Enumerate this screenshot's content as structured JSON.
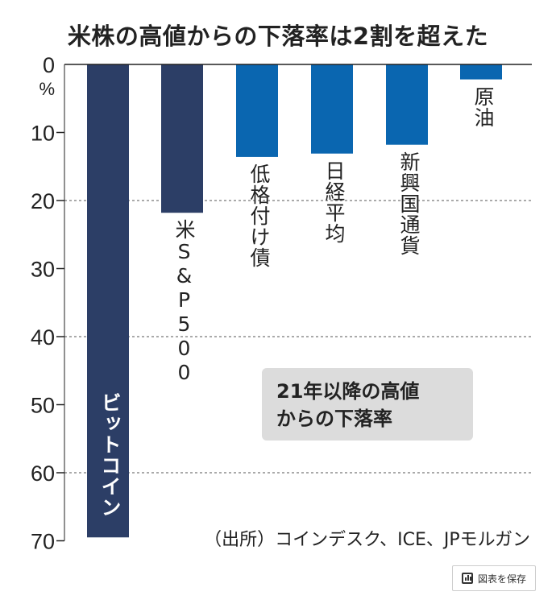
{
  "title": "米株の高値からの下落率は2割を超えた",
  "chart_data": {
    "type": "bar",
    "title": "米株の高値からの下落率は2割を超えた",
    "categories": [
      "ビットコイン",
      "米S&P500",
      "低格付け債",
      "日経平均",
      "新興国通貨",
      "原油"
    ],
    "values": [
      69.5,
      21.8,
      13.6,
      13.1,
      11.8,
      2.2
    ],
    "colors": [
      "#2c3e66",
      "#2c3e66",
      "#0a66b0",
      "#0a66b0",
      "#0a66b0",
      "#0a66b0"
    ],
    "ylabel": "%",
    "ylim": [
      0,
      70
    ],
    "yticks": [
      "0",
      "10",
      "20",
      "30",
      "40",
      "50",
      "60",
      "70"
    ],
    "grid": "dashed at 20, 40, 60",
    "annotation": [
      "21年以降の高値",
      "からの下落率"
    ],
    "source": "（出所）コインデスク、ICE、JPモルガン"
  },
  "save_button": {
    "label": "図表を保存",
    "icon": "bar-chart-icon"
  }
}
